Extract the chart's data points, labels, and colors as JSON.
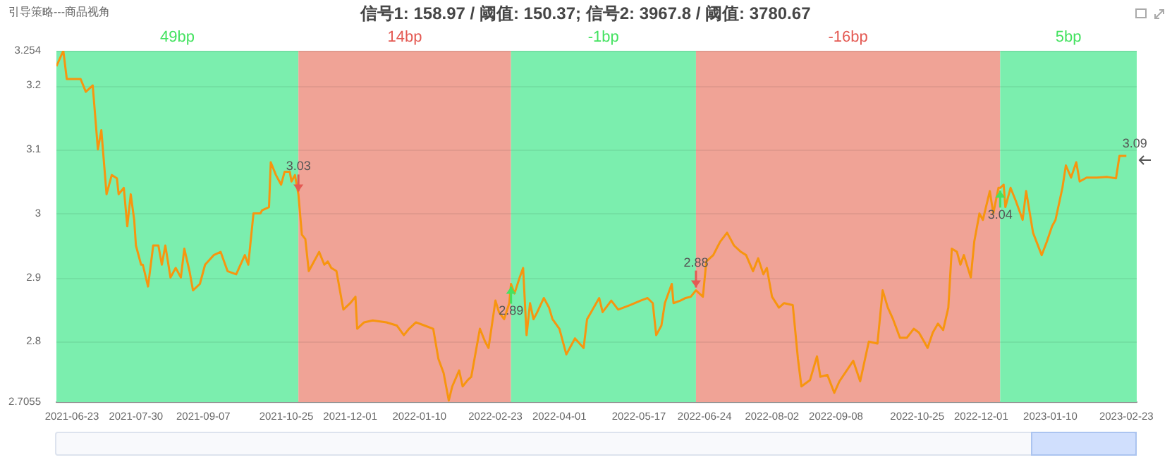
{
  "chart_data": {
    "type": "line",
    "title": "信号1: 158.97 / 阈值: 150.37; 信号2: 3967.8 / 阈值: 3780.67",
    "subtitle": "引导策略---商品视角",
    "x": [
      "2021-06-14",
      "2021-06-18",
      "2021-06-20",
      "2021-06-24",
      "2021-06-28",
      "2021-07-01",
      "2021-07-05",
      "2021-07-08",
      "2021-07-10",
      "2021-07-13",
      "2021-07-16",
      "2021-07-19",
      "2021-07-20",
      "2021-07-23",
      "2021-07-25",
      "2021-07-27",
      "2021-07-29",
      "2021-07-30",
      "2021-08-02",
      "2021-08-03",
      "2021-08-06",
      "2021-08-09",
      "2021-08-12",
      "2021-08-14",
      "2021-08-16",
      "2021-08-19",
      "2021-08-22",
      "2021-08-25",
      "2021-08-27",
      "2021-08-30",
      "2021-09-01",
      "2021-09-05",
      "2021-09-08",
      "2021-09-13",
      "2021-09-17",
      "2021-09-21",
      "2021-09-26",
      "2021-10-01",
      "2021-10-03",
      "2021-10-06",
      "2021-10-10",
      "2021-10-11",
      "2021-10-15",
      "2021-10-16",
      "2021-10-19",
      "2021-10-22",
      "2021-10-24",
      "2021-10-27",
      "2021-10-28",
      "2021-10-30",
      "2021-11-01",
      "2021-11-03",
      "2021-11-05",
      "2021-11-07",
      "2021-11-09",
      "2021-11-13",
      "2021-11-16",
      "2021-11-18",
      "2021-11-20",
      "2021-11-23",
      "2021-11-25",
      "2021-11-27",
      "2021-12-01",
      "2021-12-04",
      "2021-12-05",
      "2021-12-09",
      "2021-12-14",
      "2021-12-22",
      "2021-12-28",
      "2022-01-01",
      "2022-01-04",
      "2022-01-08",
      "2022-01-13",
      "2022-01-18",
      "2022-01-21",
      "2022-01-24",
      "2022-01-27",
      "2022-01-29",
      "2022-02-02",
      "2022-02-04",
      "2022-02-07",
      "2022-02-09",
      "2022-02-14",
      "2022-02-17",
      "2022-02-19",
      "2022-02-23",
      "2022-02-25",
      "2022-02-28",
      "2022-03-03",
      "2022-03-04",
      "2022-03-06",
      "2022-03-09",
      "2022-03-11",
      "2022-03-13",
      "2022-03-15",
      "2022-03-17",
      "2022-03-19",
      "2022-03-23",
      "2022-03-26",
      "2022-03-28",
      "2022-04-01",
      "2022-04-05",
      "2022-04-08",
      "2022-04-10",
      "2022-04-15",
      "2022-04-17",
      "2022-04-24",
      "2022-04-26",
      "2022-05-01",
      "2022-05-05",
      "2022-05-12",
      "2022-05-18",
      "2022-05-22",
      "2022-05-25",
      "2022-05-27",
      "2022-05-30",
      "2022-06-01",
      "2022-06-05",
      "2022-06-06",
      "2022-06-10",
      "2022-06-13",
      "2022-06-16",
      "2022-06-19",
      "2022-06-23",
      "2022-06-25",
      "2022-06-29",
      "2022-07-03",
      "2022-07-07",
      "2022-07-11",
      "2022-07-15",
      "2022-07-18",
      "2022-07-22",
      "2022-07-25",
      "2022-07-28",
      "2022-07-30",
      "2022-08-02",
      "2022-08-06",
      "2022-08-09",
      "2022-08-14",
      "2022-08-17",
      "2022-08-19",
      "2022-08-24",
      "2022-08-28",
      "2022-08-30",
      "2022-09-03",
      "2022-09-07",
      "2022-09-10",
      "2022-09-18",
      "2022-09-22",
      "2022-09-27",
      "2022-10-02",
      "2022-10-05",
      "2022-10-08",
      "2022-10-11",
      "2022-10-15",
      "2022-10-19",
      "2022-10-23",
      "2022-10-26",
      "2022-10-29",
      "2022-10-31",
      "2022-11-03",
      "2022-11-06",
      "2022-11-09",
      "2022-11-12",
      "2022-11-14",
      "2022-11-17",
      "2022-11-19",
      "2022-11-21",
      "2022-11-25",
      "2022-11-27",
      "2022-11-30",
      "2022-12-02",
      "2022-12-06",
      "2022-12-08",
      "2022-12-11",
      "2022-12-12",
      "2022-12-14",
      "2022-12-15",
      "2022-12-18",
      "2022-12-21",
      "2022-12-25",
      "2022-12-27",
      "2022-12-31",
      "2023-01-05",
      "2023-01-08",
      "2023-01-11",
      "2023-01-13",
      "2023-01-17",
      "2023-01-19",
      "2023-01-22",
      "2023-01-25",
      "2023-01-27",
      "2023-01-31",
      "2023-02-06",
      "2023-02-12",
      "2023-02-17",
      "2023-02-19",
      "2023-02-23"
    ],
    "values": [
      3.23,
      3.254,
      3.21,
      3.21,
      3.21,
      3.19,
      3.2,
      3.1,
      3.13,
      3.03,
      3.06,
      3.055,
      3.03,
      3.04,
      2.98,
      3.03,
      2.99,
      2.95,
      2.92,
      2.92,
      2.886,
      2.95,
      2.95,
      2.92,
      2.95,
      2.9,
      2.915,
      2.9,
      2.945,
      2.91,
      2.88,
      2.89,
      2.92,
      2.935,
      2.94,
      2.91,
      2.905,
      2.935,
      2.92,
      3.0,
      3.0,
      3.005,
      3.01,
      3.08,
      3.06,
      3.045,
      3.065,
      3.065,
      3.05,
      3.06,
      3.03,
      2.967,
      2.96,
      2.91,
      2.92,
      2.94,
      2.92,
      2.925,
      2.915,
      2.91,
      2.88,
      2.85,
      2.86,
      2.87,
      2.82,
      2.83,
      2.833,
      2.83,
      2.825,
      2.81,
      2.82,
      2.83,
      2.825,
      2.82,
      2.773,
      2.751,
      2.708,
      2.73,
      2.755,
      2.73,
      2.74,
      2.745,
      2.82,
      2.8,
      2.79,
      2.864,
      2.846,
      2.835,
      2.86,
      2.89,
      2.875,
      2.9,
      2.915,
      2.81,
      2.86,
      2.835,
      2.845,
      2.868,
      2.853,
      2.835,
      2.82,
      2.78,
      2.795,
      2.805,
      2.79,
      2.835,
      2.868,
      2.846,
      2.864,
      2.85,
      2.857,
      2.864,
      2.868,
      2.86,
      2.81,
      2.825,
      2.86,
      2.89,
      2.86,
      2.864,
      2.868,
      2.87,
      2.88,
      2.87,
      2.925,
      2.935,
      2.956,
      2.97,
      2.95,
      2.94,
      2.935,
      2.91,
      2.93,
      2.905,
      2.915,
      2.87,
      2.853,
      2.86,
      2.857,
      2.773,
      2.73,
      2.74,
      2.777,
      2.745,
      2.748,
      2.72,
      2.738,
      2.77,
      2.738,
      2.8,
      2.797,
      2.88,
      2.853,
      2.835,
      2.806,
      2.806,
      2.82,
      2.814,
      2.8,
      2.79,
      2.814,
      2.828,
      2.818,
      2.853,
      2.945,
      2.94,
      2.92,
      2.935,
      2.9,
      2.956,
      3.0,
      2.99,
      3.035,
      3.0,
      3.04,
      3.04,
      3.045,
      3.01,
      3.04,
      3.02,
      2.99,
      3.035,
      2.97,
      2.935,
      2.956,
      2.98,
      2.99,
      3.04,
      3.075,
      3.056,
      3.08,
      3.05,
      3.056,
      3.056,
      3.057,
      3.055,
      3.09,
      3.09
    ],
    "color": "#f7950f",
    "xlim": [
      "2021-06-14",
      "2023-03-01"
    ],
    "xticks": [
      "2021-06-23",
      "2021-07-30",
      "2021-09-07",
      "2021-10-25",
      "2021-12-01",
      "2022-01-10",
      "2022-02-23",
      "2022-04-01",
      "2022-05-17",
      "2022-06-24",
      "2022-08-02",
      "2022-09-08",
      "2022-10-25",
      "2022-12-01",
      "2023-01-10",
      "2023-02-23"
    ],
    "ylim": [
      2.7055,
      3.254
    ],
    "yticks": [
      2.7055,
      2.8,
      2.9,
      3,
      3.1,
      3.2,
      3.254
    ],
    "grid": "y",
    "legend": false,
    "marker": "none",
    "line_style": "solid",
    "bands": [
      {
        "axis": "x",
        "from": "2021-06-14",
        "to": "2021-11-01",
        "label": "49bp",
        "color": "#7beeae"
      },
      {
        "axis": "x",
        "from": "2021-11-01",
        "to": "2022-03-04",
        "label": "14bp",
        "color": "#f0a396"
      },
      {
        "axis": "x",
        "from": "2022-03-04",
        "to": "2022-06-19",
        "label": "-1bp",
        "color": "#7beeae"
      },
      {
        "axis": "x",
        "from": "2022-06-19",
        "to": "2022-12-12",
        "label": "-16bp",
        "color": "#f0a396"
      },
      {
        "axis": "x",
        "from": "2022-12-12",
        "to": "2023-03-01",
        "label": "5bp",
        "color": "#7beeae"
      }
    ],
    "annotations": [
      {
        "text": "3.03",
        "x": "2021-11-01",
        "y": 3.03
      },
      {
        "text": "2.89",
        "x": "2022-03-04",
        "y": 2.89
      },
      {
        "text": "2.88",
        "x": "2022-06-19",
        "y": 2.88
      },
      {
        "text": "3.04",
        "x": "2022-12-12",
        "y": 3.04
      },
      {
        "text": "3.09",
        "x": "2023-02-23",
        "y": 3.09
      }
    ]
  }
}
